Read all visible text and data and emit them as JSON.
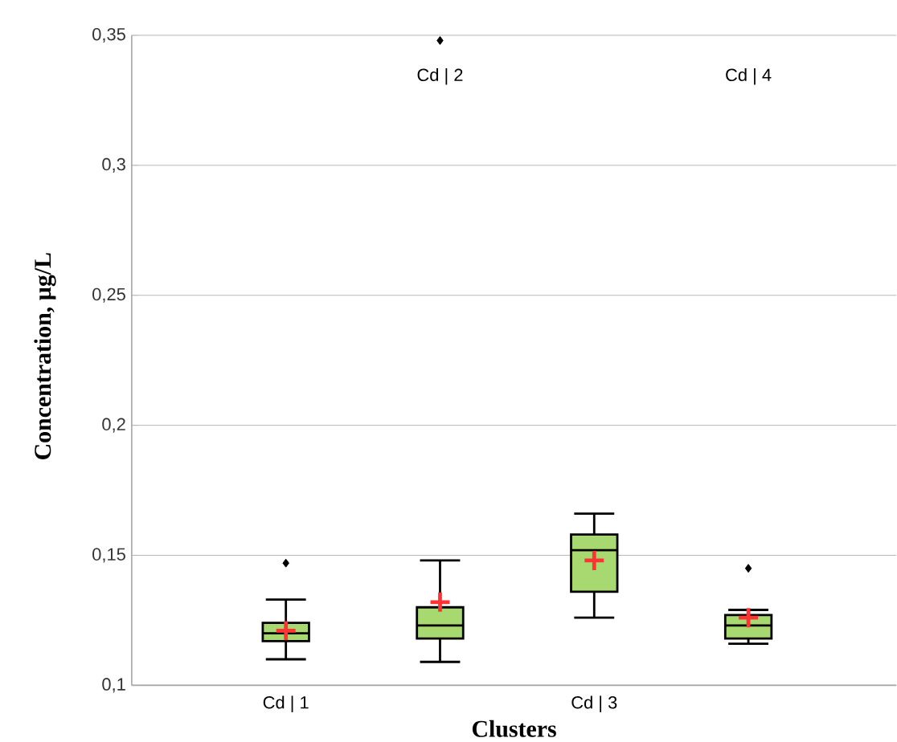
{
  "chart_data": {
    "type": "box",
    "xlabel": "Clusters",
    "ylabel": "Concentration, µg/L",
    "categories": [
      "Cd | 1",
      "Cd | 2",
      "Cd | 3",
      "Cd | 4"
    ],
    "color": "#a8d870",
    "boxes": [
      {
        "low": 0.11,
        "q1": 0.117,
        "median": 0.12,
        "q3": 0.124,
        "high": 0.133,
        "mean": 0.121,
        "outliers": [
          0.147
        ]
      },
      {
        "low": 0.109,
        "q1": 0.118,
        "median": 0.123,
        "q3": 0.13,
        "high": 0.148,
        "mean": 0.132,
        "outliers": [
          0.348
        ]
      },
      {
        "low": 0.126,
        "q1": 0.136,
        "median": 0.152,
        "q3": 0.158,
        "high": 0.166,
        "mean": 0.148
      },
      {
        "low": 0.116,
        "q1": 0.118,
        "median": 0.123,
        "q3": 0.127,
        "high": 0.129,
        "mean": 0.126,
        "outliers": [
          0.145
        ]
      }
    ],
    "ylim": [
      0.1,
      0.35
    ],
    "yticks": [
      {
        "value": 0.1,
        "label": "0,1"
      },
      {
        "value": 0.15,
        "label": "0,15"
      },
      {
        "value": 0.2,
        "label": "0,2"
      },
      {
        "value": 0.25,
        "label": "0,25"
      },
      {
        "value": 0.3,
        "label": "0,3"
      },
      {
        "value": 0.35,
        "label": "0,35"
      }
    ],
    "grid": "y",
    "marker": "diamond"
  }
}
